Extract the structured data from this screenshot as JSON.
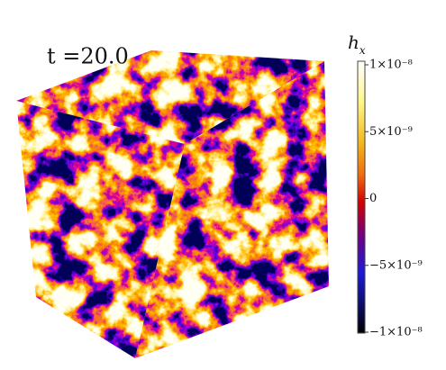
{
  "figure": {
    "time_label": "t =20.0",
    "colorbar": {
      "title": "h",
      "subscript": "x",
      "ticks": [
        "1×10⁻⁸",
        "5×10⁻⁹",
        "0",
        "−5×10⁻⁹",
        "−1×10⁻⁸"
      ]
    }
  }
}
